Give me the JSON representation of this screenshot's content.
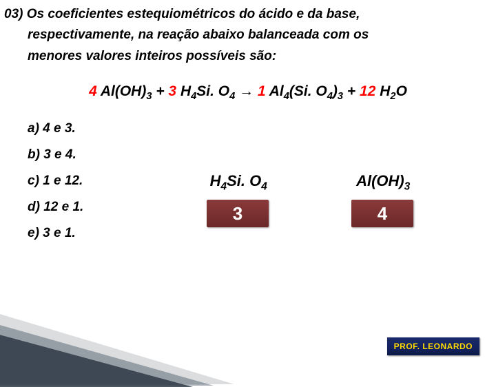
{
  "question": {
    "line1": "03) Os  coeficientes  estequiométricos  do  ácido  e  da  base,",
    "line2": "respectivamente,  na  reação  abaixo  balanceada  com  os",
    "line3": "menores  valores  inteiros  possíveis  são:"
  },
  "equation": {
    "c1": "4",
    "t1": " Al(OH)",
    "s1": "3",
    "plus1": "   +   ",
    "c2": "3",
    "t2": " H",
    "s2": "4",
    "t3": "Si. O",
    "s3": "4",
    "arrow": "  →  ",
    "c3": "1",
    "t4": " Al",
    "s4": "4",
    "t5": "(Si. O",
    "s5": "4",
    "t6": ")",
    "s6": "3",
    "plus2": "   +  ",
    "c4": "12",
    "t7": " H",
    "s7": "2",
    "t8": "O"
  },
  "options": {
    "a": "a)  4 e 3.",
    "b": "b)  3 e 4.",
    "c": "c)  1 e 12.",
    "d": "d)  12 e 1.",
    "e": "e)  3 e 1."
  },
  "labels": {
    "acid": "H",
    "acid_s1": "4",
    "acid_t2": "Si. O",
    "acid_s2": "4",
    "base": "Al(OH)",
    "base_s1": "3"
  },
  "counts": {
    "acid": "3",
    "base": "4"
  },
  "badge": "PROF. LEONARDO",
  "colors": {
    "coef_red": "#ff0000",
    "box_bg_top": "#8a3a3a",
    "box_bg_bottom": "#6b2828",
    "badge_bg": "#12215a",
    "badge_text": "#ffdd00"
  }
}
